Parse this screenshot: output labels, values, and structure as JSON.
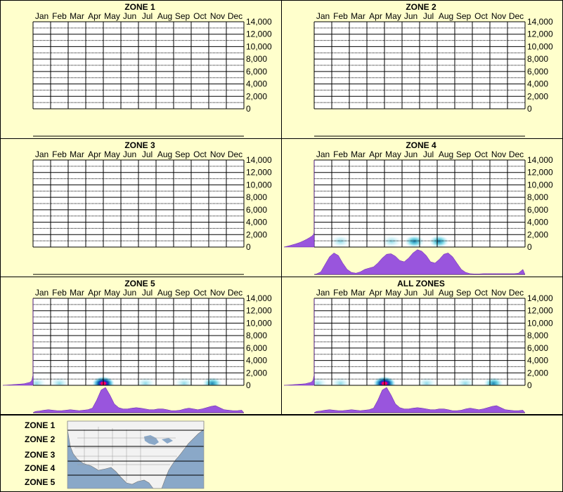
{
  "months": [
    "Jan",
    "Feb",
    "Mar",
    "Apr",
    "May",
    "Jun",
    "Jul",
    "Aug",
    "Sep",
    "Oct",
    "Nov",
    "Dec"
  ],
  "y_ticks": [
    "14,000",
    "12,000",
    "10,000",
    "8,000",
    "6,000",
    "4,000",
    "2,000",
    "0"
  ],
  "colors": {
    "background": "#ffffcc",
    "grid": "#000000",
    "density_fill": "#9955dd",
    "heat_low": "#99ddee",
    "heat_high": "#ff0066",
    "map_water": "#8aa8c8",
    "map_land": "#f2f2f2"
  },
  "chart_data": [
    {
      "type": "heatmap",
      "title": "ZONE 1",
      "xlabel": "",
      "ylabel": "",
      "categories": [
        "Jan",
        "Feb",
        "Mar",
        "Apr",
        "May",
        "Jun",
        "Jul",
        "Aug",
        "Sep",
        "Oct",
        "Nov",
        "Dec"
      ],
      "ylim": [
        0,
        14000
      ],
      "hotspots": [],
      "month_density": [],
      "elevation_density": []
    },
    {
      "type": "heatmap",
      "title": "ZONE 2",
      "xlabel": "",
      "ylabel": "",
      "categories": [
        "Jan",
        "Feb",
        "Mar",
        "Apr",
        "May",
        "Jun",
        "Jul",
        "Aug",
        "Sep",
        "Oct",
        "Nov",
        "Dec"
      ],
      "ylim": [
        0,
        14000
      ],
      "hotspots": [],
      "month_density": [],
      "elevation_density": []
    },
    {
      "type": "heatmap",
      "title": "ZONE 3",
      "xlabel": "",
      "ylabel": "",
      "categories": [
        "Jan",
        "Feb",
        "Mar",
        "Apr",
        "May",
        "Jun",
        "Jul",
        "Aug",
        "Sep",
        "Oct",
        "Nov",
        "Dec"
      ],
      "ylim": [
        0,
        14000
      ],
      "hotspots": [],
      "month_density": [],
      "elevation_density": []
    },
    {
      "type": "heatmap",
      "title": "ZONE 4",
      "xlabel": "",
      "ylabel": "",
      "categories": [
        "Jan",
        "Feb",
        "Mar",
        "Apr",
        "May",
        "Jun",
        "Jul",
        "Aug",
        "Sep",
        "Oct",
        "Nov",
        "Dec"
      ],
      "ylim": [
        0,
        14000
      ],
      "hotspots": [
        {
          "month": 1.5,
          "elevation": 900,
          "intensity": 0.35
        },
        {
          "month": 4.4,
          "elevation": 900,
          "intensity": 0.35
        },
        {
          "month": 5.7,
          "elevation": 900,
          "intensity": 0.45
        },
        {
          "month": 7.1,
          "elevation": 900,
          "intensity": 0.4
        }
      ],
      "month_density": [
        0.02,
        0.1,
        0.4,
        0.7,
        0.85,
        0.75,
        0.45,
        0.2,
        0.08,
        0.05,
        0.1,
        0.2,
        0.25,
        0.3,
        0.45,
        0.65,
        0.8,
        0.82,
        0.72,
        0.55,
        0.5,
        0.65,
        0.85,
        0.98,
        0.92,
        0.75,
        0.5,
        0.45,
        0.6,
        0.8,
        0.85,
        0.7,
        0.45,
        0.2,
        0.08,
        0.03,
        0.02,
        0.02,
        0.03,
        0.03,
        0.03,
        0.03,
        0.03,
        0.03,
        0.03,
        0.03,
        0.05,
        0.2
      ],
      "elevation_density": [
        1.0,
        0.8,
        0.62,
        0.47,
        0.35,
        0.25,
        0.16,
        0.08,
        0.03,
        0.01,
        0,
        0,
        0,
        0,
        0,
        0,
        0,
        0,
        0,
        0,
        0,
        0,
        0,
        0,
        0,
        0,
        0,
        0,
        0,
        0,
        0,
        0,
        0,
        0,
        0,
        0,
        0,
        0,
        0,
        0,
        0,
        0,
        0,
        0,
        0,
        0,
        0,
        0,
        0,
        0,
        0,
        0,
        0,
        0,
        0,
        0,
        0
      ]
    },
    {
      "type": "heatmap",
      "title": "ZONE 5",
      "xlabel": "",
      "ylabel": "",
      "categories": [
        "Jan",
        "Feb",
        "Mar",
        "Apr",
        "May",
        "Jun",
        "Jul",
        "Aug",
        "Sep",
        "Oct",
        "Nov",
        "Dec"
      ],
      "ylim": [
        0,
        14000
      ],
      "hotspots": [
        {
          "month": 0.2,
          "elevation": 300,
          "intensity": 0.35
        },
        {
          "month": 1.5,
          "elevation": 300,
          "intensity": 0.3
        },
        {
          "month": 4.0,
          "elevation": 300,
          "intensity": 1.0
        },
        {
          "month": 6.4,
          "elevation": 300,
          "intensity": 0.35
        },
        {
          "month": 8.6,
          "elevation": 300,
          "intensity": 0.35
        },
        {
          "month": 10.2,
          "elevation": 300,
          "intensity": 0.5
        }
      ],
      "month_density": [
        0.05,
        0.07,
        0.1,
        0.12,
        0.1,
        0.08,
        0.08,
        0.1,
        0.12,
        0.1,
        0.08,
        0.1,
        0.12,
        0.18,
        0.5,
        0.9,
        1.0,
        0.7,
        0.35,
        0.2,
        0.15,
        0.15,
        0.18,
        0.2,
        0.18,
        0.15,
        0.12,
        0.12,
        0.15,
        0.15,
        0.12,
        0.08,
        0.08,
        0.1,
        0.15,
        0.18,
        0.15,
        0.12,
        0.15,
        0.2,
        0.25,
        0.28,
        0.2,
        0.12,
        0.1,
        0.08,
        0.08,
        0.1
      ],
      "elevation_density": [
        1.0,
        0.3,
        0.1,
        0.05,
        0.03,
        0.02,
        0.01,
        0,
        0,
        0,
        0,
        0,
        0,
        0,
        0,
        0,
        0,
        0,
        0,
        0,
        0,
        0,
        0,
        0,
        0,
        0,
        0,
        0,
        0,
        0,
        0,
        0,
        0,
        0,
        0,
        0,
        0,
        0,
        0,
        0,
        0,
        0,
        0,
        0,
        0,
        0,
        0,
        0,
        0,
        0,
        0,
        0,
        0,
        0,
        0,
        0,
        0
      ]
    },
    {
      "type": "heatmap",
      "title": "ALL ZONES",
      "xlabel": "",
      "ylabel": "",
      "categories": [
        "Jan",
        "Feb",
        "Mar",
        "Apr",
        "May",
        "Jun",
        "Jul",
        "Aug",
        "Sep",
        "Oct",
        "Nov",
        "Dec"
      ],
      "ylim": [
        0,
        14000
      ],
      "hotspots": [
        {
          "month": 0.2,
          "elevation": 300,
          "intensity": 0.35
        },
        {
          "month": 1.5,
          "elevation": 300,
          "intensity": 0.3
        },
        {
          "month": 4.0,
          "elevation": 300,
          "intensity": 1.0
        },
        {
          "month": 6.4,
          "elevation": 300,
          "intensity": 0.35
        },
        {
          "month": 8.6,
          "elevation": 300,
          "intensity": 0.35
        },
        {
          "month": 10.2,
          "elevation": 300,
          "intensity": 0.5
        }
      ],
      "month_density": [
        0.05,
        0.07,
        0.1,
        0.12,
        0.1,
        0.08,
        0.08,
        0.1,
        0.12,
        0.1,
        0.08,
        0.1,
        0.12,
        0.18,
        0.5,
        0.9,
        1.0,
        0.7,
        0.35,
        0.2,
        0.15,
        0.15,
        0.18,
        0.2,
        0.18,
        0.15,
        0.12,
        0.12,
        0.15,
        0.15,
        0.12,
        0.08,
        0.08,
        0.1,
        0.15,
        0.18,
        0.15,
        0.12,
        0.15,
        0.2,
        0.25,
        0.28,
        0.2,
        0.12,
        0.1,
        0.08,
        0.08,
        0.1
      ],
      "elevation_density": [
        1.0,
        0.3,
        0.1,
        0.05,
        0.03,
        0.02,
        0.01,
        0,
        0,
        0,
        0,
        0,
        0,
        0,
        0,
        0,
        0,
        0,
        0,
        0,
        0,
        0,
        0,
        0,
        0,
        0,
        0,
        0,
        0,
        0,
        0,
        0,
        0,
        0,
        0,
        0,
        0,
        0,
        0,
        0,
        0,
        0,
        0,
        0,
        0,
        0,
        0,
        0,
        0,
        0,
        0,
        0,
        0,
        0,
        0,
        0,
        0
      ]
    }
  ],
  "legend": {
    "zones": [
      "ZONE 1",
      "ZONE 2",
      "ZONE 3",
      "ZONE 4",
      "ZONE 5"
    ]
  }
}
